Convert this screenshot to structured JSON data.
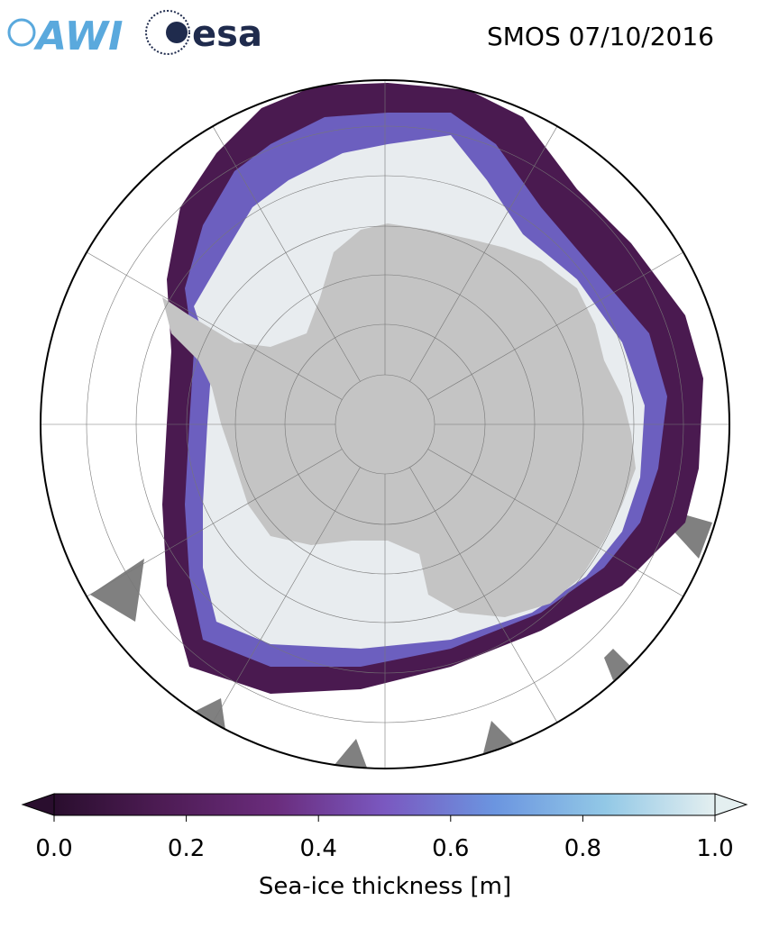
{
  "header": {
    "title": "SMOS 07/10/2016",
    "logos": [
      "AWI",
      "esa"
    ]
  },
  "colorbar": {
    "label": "Sea-ice thickness [m]",
    "lim": [
      0,
      1
    ],
    "ticks": [
      {
        "value": 0,
        "label": "0.0"
      },
      0.2,
      0.4,
      0.6,
      0.8,
      {
        "value": 1,
        "label": "1.0"
      }
    ],
    "colors": [
      "#2a0e2e",
      "#4e1c55",
      "#6a2c7c",
      "#7a58c0",
      "#6b95e0",
      "#92c8e6",
      "#e4eff0"
    ],
    "extend": "both"
  }
}
